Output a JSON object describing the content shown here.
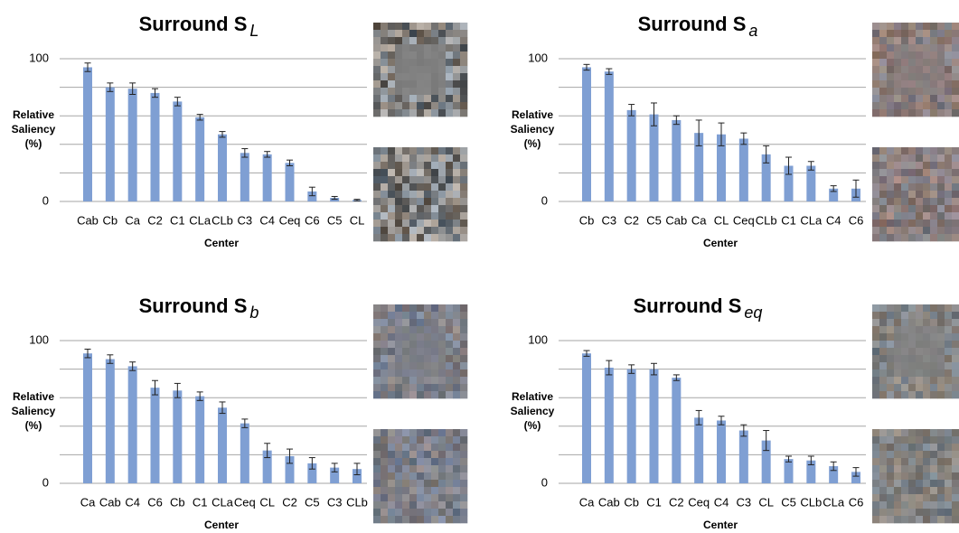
{
  "chart_data": [
    {
      "type": "bar",
      "title": "Surround S",
      "title_subscript": "L",
      "xlabel": "Center",
      "ylabel_lines": [
        "Relative",
        "Saliency",
        "(%)"
      ],
      "categories": [
        "Cab",
        "Cb",
        "Ca",
        "C2",
        "C1",
        "CLa",
        "CLb",
        "C3",
        "C4",
        "Ceq",
        "C6",
        "C5",
        "CL"
      ],
      "values": [
        94,
        80,
        79,
        76,
        70,
        59,
        47,
        34,
        33,
        27,
        7,
        2.5,
        1
      ],
      "errors": [
        3,
        3,
        4,
        3,
        3,
        2,
        2,
        3,
        2,
        2,
        3,
        1,
        0.5
      ],
      "color": "#7f9fd3",
      "ylim": [
        0,
        100
      ],
      "yticks": [
        0,
        100
      ],
      "ygrid": [
        0,
        20,
        40,
        60,
        80,
        100
      ]
    },
    {
      "type": "bar",
      "title": "Surround S",
      "title_subscript": "a",
      "xlabel": "Center",
      "ylabel_lines": [
        "Relative",
        "Saliency",
        "(%)"
      ],
      "categories": [
        "Cb",
        "C3",
        "C2",
        "C5",
        "Cab",
        "Ca",
        "CL",
        "Ceq",
        "CLb",
        "C1",
        "CLa",
        "C4",
        "C6"
      ],
      "values": [
        94,
        91,
        64,
        61,
        57,
        48,
        47,
        44,
        33,
        25,
        25,
        9,
        9
      ],
      "errors": [
        2,
        2,
        4,
        8,
        3,
        9,
        8,
        4,
        6,
        6,
        3,
        2,
        6
      ],
      "color": "#7f9fd3",
      "ylim": [
        0,
        100
      ],
      "yticks": [
        0,
        100
      ],
      "ygrid": [
        0,
        20,
        40,
        60,
        80,
        100
      ]
    },
    {
      "type": "bar",
      "title": "Surround S",
      "title_subscript": "b",
      "xlabel": "Center",
      "ylabel_lines": [
        "Relative",
        "Saliency",
        "(%)"
      ],
      "categories": [
        "Ca",
        "Cab",
        "C4",
        "C6",
        "Cb",
        "C1",
        "CLa",
        "Ceq",
        "CL",
        "C2",
        "C5",
        "C3",
        "CLb"
      ],
      "values": [
        91,
        87,
        82,
        67,
        65,
        61,
        53,
        42,
        23,
        19,
        14,
        11,
        10
      ],
      "errors": [
        3,
        3,
        3,
        5,
        5,
        3,
        4,
        3,
        5,
        5,
        4,
        3,
        4
      ],
      "color": "#7f9fd3",
      "ylim": [
        0,
        100
      ],
      "yticks": [
        0,
        100
      ],
      "ygrid": [
        0,
        20,
        40,
        60,
        80,
        100
      ]
    },
    {
      "type": "bar",
      "title": "Surround S",
      "title_subscript": "eq",
      "xlabel": "Center",
      "ylabel_lines": [
        "Relative",
        "Saliency",
        "(%)"
      ],
      "categories": [
        "Ca",
        "Cab",
        "Cb",
        "C1",
        "C2",
        "Ceq",
        "C4",
        "C3",
        "CL",
        "C5",
        "CLb",
        "CLa",
        "C6"
      ],
      "values": [
        91,
        81,
        80,
        80,
        74,
        46,
        44,
        37,
        30,
        17,
        16,
        12,
        8
      ],
      "errors": [
        2,
        5,
        3,
        4,
        2,
        5,
        3,
        4,
        7,
        2,
        3,
        3,
        3
      ],
      "color": "#7f9fd3",
      "ylim": [
        0,
        100
      ],
      "yticks": [
        0,
        100
      ],
      "ygrid": [
        0,
        20,
        40,
        60,
        80,
        100
      ]
    }
  ]
}
